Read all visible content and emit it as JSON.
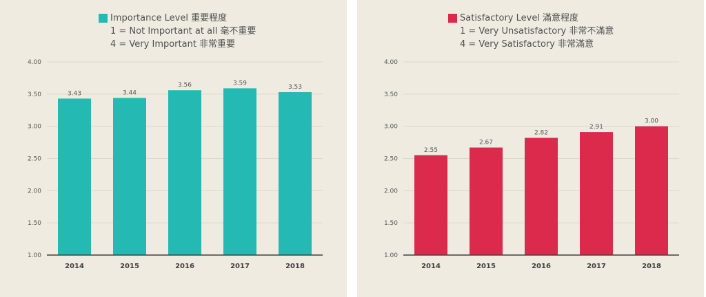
{
  "chart_data": [
    {
      "type": "bar",
      "legend": {
        "series_name": "Importance Level 重要程度",
        "note_1": "1 = Not Important at all 毫不重要",
        "note_4": "4 = Very Important 非常重要"
      },
      "categories": [
        "2014",
        "2015",
        "2016",
        "2017",
        "2018"
      ],
      "values": [
        3.43,
        3.44,
        3.56,
        3.59,
        3.53
      ],
      "value_labels": [
        "3.43",
        "3.44",
        "3.56",
        "3.59",
        "3.53"
      ],
      "ylim": [
        1.0,
        4.0
      ],
      "yticks": [
        "1.00",
        "1.50",
        "2.00",
        "2.50",
        "3.00",
        "3.50",
        "4.00"
      ],
      "color": "#25b9b3",
      "grid": true,
      "legend_position": "top-center"
    },
    {
      "type": "bar",
      "legend": {
        "series_name": "Satisfactory Level 滿意程度",
        "note_1": "1 = Very Unsatisfactory 非常不滿意",
        "note_4": "4 = Very Satisfactory 非常滿意"
      },
      "categories": [
        "2014",
        "2015",
        "2016",
        "2017",
        "2018"
      ],
      "values": [
        2.55,
        2.67,
        2.82,
        2.91,
        3.0
      ],
      "value_labels": [
        "2.55",
        "2.67",
        "2.82",
        "2.91",
        "3.00"
      ],
      "ylim": [
        1.0,
        4.0
      ],
      "yticks": [
        "1.00",
        "1.50",
        "2.00",
        "2.50",
        "3.00",
        "3.50",
        "4.00"
      ],
      "color": "#dc2a4d",
      "grid": true,
      "legend_position": "top-center"
    }
  ]
}
